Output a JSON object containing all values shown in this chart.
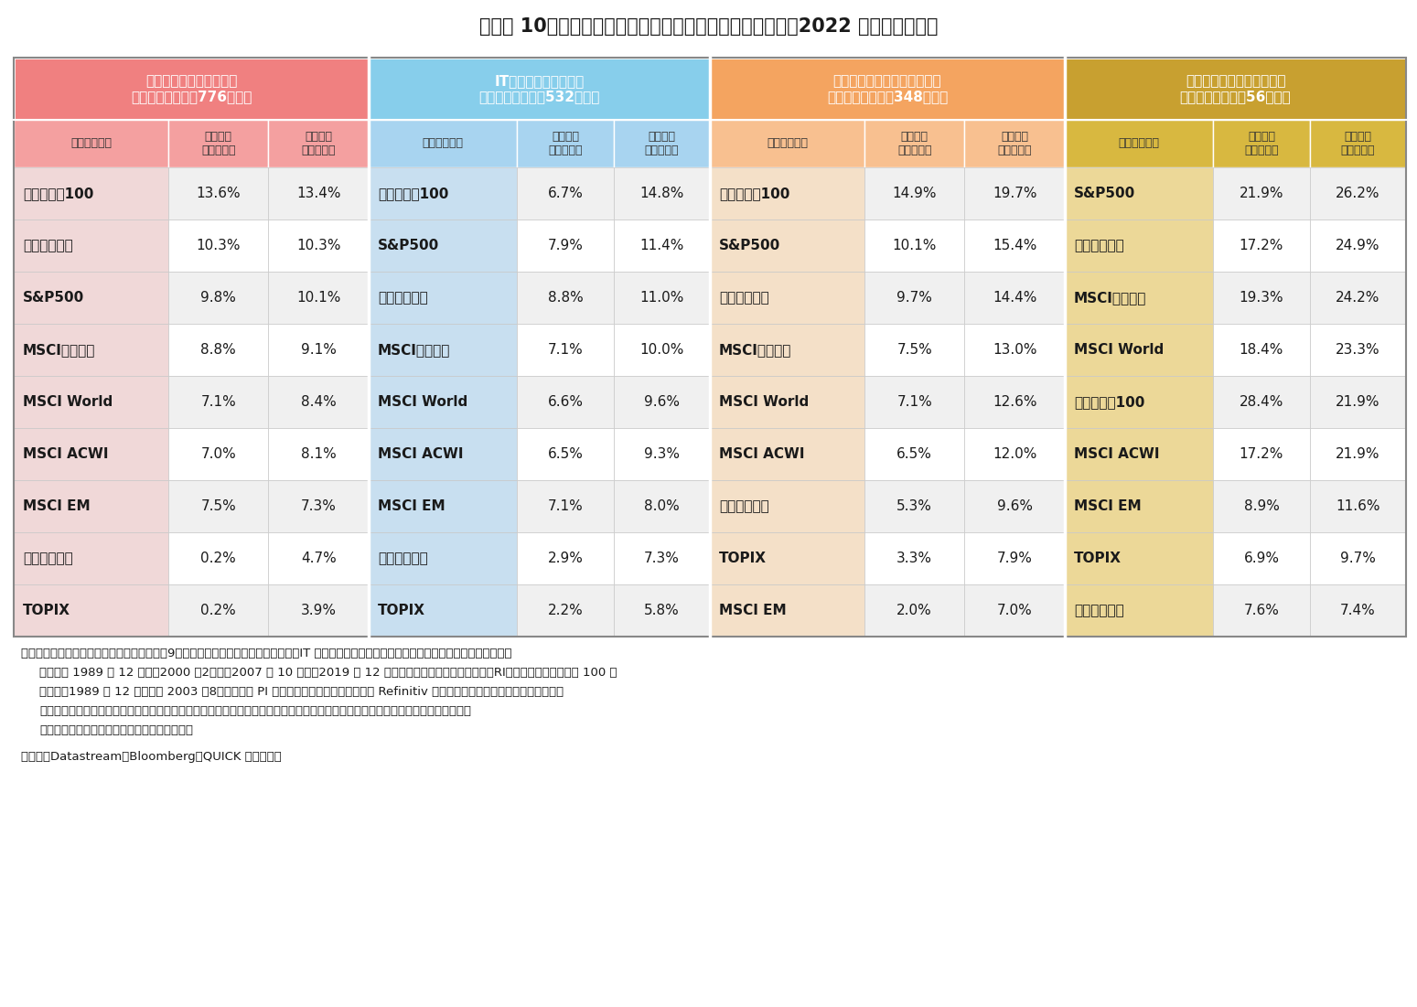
{
  "title": "【図表 10】一括投資と積立投資のリターン（年率利回り、2022 年４月末時点）",
  "section_labels": [
    "日本バブル崩壊直前～今\n（累計積立元本：776万円）",
    "ITバブル崩壊直前～今\n（累計積立元本：532万円）",
    "リーマン・ショック直前～今\n（累計積立元本：348万円）",
    "コロナ・ショック直前～今\n（累計積立元本：56万円）"
  ],
  "section_colors": [
    "#F08080",
    "#87CEEB",
    "#F4A460",
    "#C8A030"
  ],
  "col_header_labels": [
    "インデックス",
    "一括投資\n年率利回り",
    "積立投資\n年率利回り",
    "インデックス",
    "一括投資\n年率利回り",
    "積立投資\n年率利回り",
    "インデックス",
    "一括投資\n年率利回り",
    "積立投資\n年率利回り",
    "インデックス",
    "一括投資\n年率利回り",
    "積立投資\n年率利回り"
  ],
  "col_header_bg": [
    "#F4A0A0",
    "#F4A0A0",
    "#F4A0A0",
    "#A8D4F0",
    "#A8D4F0",
    "#A8D4F0",
    "#F8C090",
    "#F8C090",
    "#F8C090",
    "#D8B840",
    "#D8B840",
    "#D8B840"
  ],
  "rows": [
    [
      "ナスダック100",
      "13.6%",
      "13.4%",
      "ナスダック100",
      "6.7%",
      "14.8%",
      "ナスダック100",
      "14.9%",
      "19.7%",
      "S&P500",
      "21.9%",
      "26.2%"
    ],
    [
      "ダウ平均株価",
      "10.3%",
      "10.3%",
      "S&P500",
      "7.9%",
      "11.4%",
      "S&P500",
      "10.1%",
      "15.4%",
      "ダウ平均株価",
      "17.2%",
      "24.9%"
    ],
    [
      "S&P500",
      "9.8%",
      "10.1%",
      "ダウ平均株価",
      "8.8%",
      "11.0%",
      "ダウ平均株価",
      "9.7%",
      "14.4%",
      "MSCIコクサイ",
      "19.3%",
      "24.2%"
    ],
    [
      "MSCIコクサイ",
      "8.8%",
      "9.1%",
      "MSCIコクサイ",
      "7.1%",
      "10.0%",
      "MSCIコクサイ",
      "7.5%",
      "13.0%",
      "MSCI World",
      "18.4%",
      "23.3%"
    ],
    [
      "MSCI World",
      "7.1%",
      "8.4%",
      "MSCI World",
      "6.6%",
      "9.6%",
      "MSCI World",
      "7.1%",
      "12.6%",
      "ナスダック100",
      "28.4%",
      "21.9%"
    ],
    [
      "MSCI ACWI",
      "7.0%",
      "8.1%",
      "MSCI ACWI",
      "6.5%",
      "9.3%",
      "MSCI ACWI",
      "6.5%",
      "12.0%",
      "MSCI ACWI",
      "17.2%",
      "21.9%"
    ],
    [
      "MSCI EM",
      "7.5%",
      "7.3%",
      "MSCI EM",
      "7.1%",
      "8.0%",
      "日経平均株価",
      "5.3%",
      "9.6%",
      "MSCI EM",
      "8.9%",
      "11.6%"
    ],
    [
      "日経平均株価",
      "0.2%",
      "4.7%",
      "日経平均株価",
      "2.9%",
      "7.3%",
      "TOPIX",
      "3.3%",
      "7.9%",
      "TOPIX",
      "6.9%",
      "9.7%"
    ],
    [
      "TOPIX",
      "0.2%",
      "3.9%",
      "TOPIX",
      "2.2%",
      "5.8%",
      "MSCI EM",
      "2.0%",
      "7.0%",
      "日経平均株価",
      "7.6%",
      "7.4%"
    ]
  ],
  "idx_col_bg": [
    "#F0D8D8",
    "#C8DFF0",
    "#F4E0C8",
    "#ECD898"
  ],
  "row_bg_even": "#F0F0F0",
  "row_bg_odd": "#FFFFFF",
  "note_line1": "（注）各ランキングは各インデックスが図表9における順位。日本バブル崩壊直前、IT バブル崩壊直前、リーマン・ショック直前、コロナ・ショッ",
  "note_line2": "ク直前は 1989 年 12 月末、2000 年2月末、2007 年 10 月末、2019 年 12 月末から月次データ（円ベース・RI）を使用。ナスダック 100 に",
  "note_line3": "ついて、1989 年 12 月末から 2003 年8月末までは PI を用いて試算。円換算レートは Refinitiv 為替レート。株価指数に直接投資するこ",
  "note_line4": "とができない。上記グラフは、株価指数に投資できると仮定し、各時点から毎月２万円ずつを積立投資した場合の四捨五入の試算結",
  "note_line5": "果。投資コスト、税金などを考慮していない。",
  "source_line": "（資料）Datastream、Bloomberg、QUICK より作成。",
  "title_fontsize": 15,
  "sec_header_fontsize": 11,
  "col_header_fontsize": 9,
  "data_fontsize": 11,
  "note_fontsize": 9.5
}
